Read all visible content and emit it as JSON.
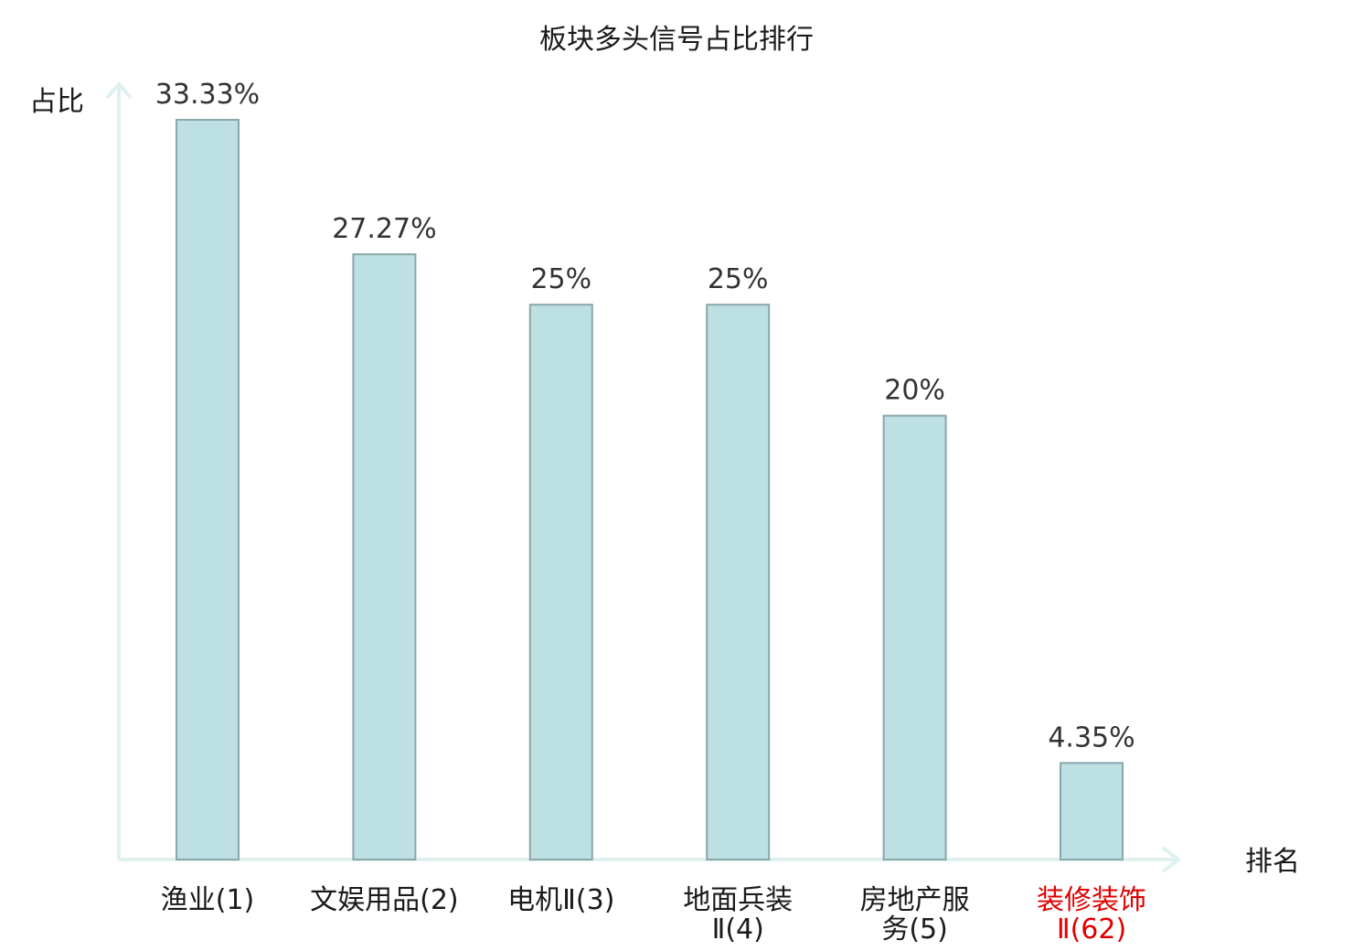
{
  "chart_data": {
    "type": "bar",
    "title": "板块多头信号占比排行",
    "ylabel": "占比",
    "xlabel": "排名",
    "ylim": [
      0,
      35
    ],
    "grid": false,
    "highlight_color": "#e00000",
    "bar_color": "#bde0e3",
    "categories": [
      {
        "lines": [
          "渔业(1)"
        ],
        "highlight": false
      },
      {
        "lines": [
          "文娱用品(2)"
        ],
        "highlight": false
      },
      {
        "lines": [
          "电机Ⅱ(3)"
        ],
        "highlight": false
      },
      {
        "lines": [
          "地面兵装",
          "Ⅱ(4)"
        ],
        "highlight": false
      },
      {
        "lines": [
          "房地产服",
          "务(5)"
        ],
        "highlight": false
      },
      {
        "lines": [
          "装修装饰",
          "Ⅱ(62)"
        ],
        "highlight": true
      }
    ],
    "values": [
      33.33,
      27.27,
      25,
      25,
      20,
      4.35
    ],
    "value_labels": [
      "33.33%",
      "27.27%",
      "25%",
      "25%",
      "20%",
      "4.35%"
    ]
  }
}
